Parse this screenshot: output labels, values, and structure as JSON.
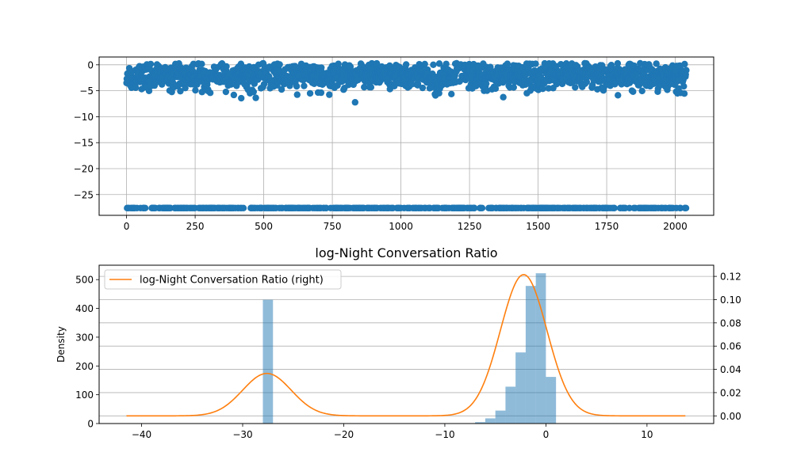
{
  "chart_data": [
    {
      "type": "scatter",
      "title": "",
      "xlabel": "",
      "ylabel": "",
      "xlim": [
        -100,
        2140
      ],
      "ylim": [
        -29,
        1.5
      ],
      "xticks": [
        0,
        250,
        500,
        750,
        1000,
        1250,
        1500,
        1750,
        2000
      ],
      "yticks": [
        0,
        -5,
        -10,
        -15,
        -20,
        -25
      ],
      "grid": true,
      "color": "#1f77b4",
      "x_range": [
        0,
        2040
      ],
      "series": [
        {
          "description_values": "main cluster of points between about -7.5 and 0 (centered near -2.2) across x 0-2040; a second constant row at y = -27.6",
          "cluster_y_center": -2.2,
          "cluster_y_range": [
            -7.5,
            0.3
          ],
          "constant_row_y": -27.6
        }
      ]
    },
    {
      "type": "bar",
      "title": "log-Night Conversation Ratio",
      "xlabel": "",
      "ylabel": "Density",
      "xlim": [
        -44.2,
        16.6
      ],
      "ylim": [
        0,
        550
      ],
      "xticks": [
        -40,
        -30,
        -20,
        -10,
        0,
        10
      ],
      "yticks": [
        0,
        100,
        200,
        300,
        400,
        500
      ],
      "grid": true,
      "bar_color": "#1f77b4",
      "bar_opacity": 0.5,
      "histogram": {
        "bin_width": 1.0,
        "bins": [
          {
            "x0": -28.0,
            "x1": -27.0,
            "value": 430
          },
          {
            "x0": -7.0,
            "x1": -6.0,
            "value": 5
          },
          {
            "x0": -6.0,
            "x1": -5.0,
            "value": 18
          },
          {
            "x0": -5.0,
            "x1": -4.0,
            "value": 45
          },
          {
            "x0": -4.0,
            "x1": -3.0,
            "value": 128
          },
          {
            "x0": -3.0,
            "x1": -2.0,
            "value": 247
          },
          {
            "x0": -2.0,
            "x1": -1.0,
            "value": 478
          },
          {
            "x0": -1.0,
            "x1": 0.0,
            "value": 522
          },
          {
            "x0": 0.0,
            "x1": 1.0,
            "value": 162
          }
        ]
      },
      "secondary_axis": {
        "ylim": [
          -0.0066,
          0.1296
        ],
        "yticks": [
          "0.00",
          "0.02",
          "0.04",
          "0.06",
          "0.08",
          "0.10",
          "0.12"
        ],
        "ytick_values": [
          0.0,
          0.02,
          0.04,
          0.06,
          0.08,
          0.1,
          0.12
        ]
      },
      "kde_line": {
        "name": "log-Night Conversation Ratio (right)",
        "color": "#ff7f0e",
        "x_range": [
          -41.5,
          13.8
        ],
        "components": [
          {
            "mean": -27.6,
            "sd": 2.4,
            "peak": 0.0365
          },
          {
            "mean": -2.2,
            "sd": 2.3,
            "peak": 0.1215
          }
        ]
      },
      "legend": {
        "placement": "top-left",
        "entries": [
          "log-Night Conversation Ratio (right)"
        ]
      }
    }
  ]
}
